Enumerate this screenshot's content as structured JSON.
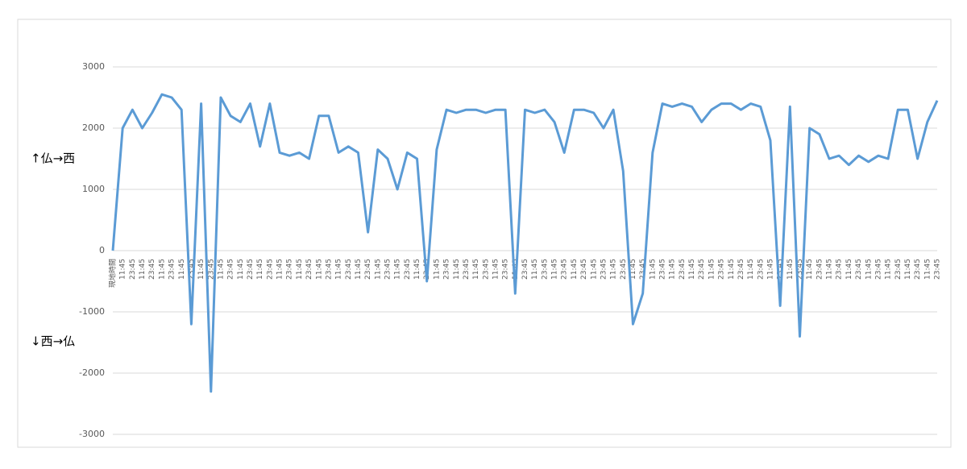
{
  "chart_data": {
    "type": "line",
    "annotations": [
      "↑仏→西",
      "↓西→仏"
    ],
    "categories": [
      "現地時間",
      "11:45",
      "23:45",
      "11:45",
      "23:45",
      "11:45",
      "23:45",
      "11:45",
      "23:45",
      "11:45",
      "23:45",
      "11:45",
      "23:45",
      "11:45",
      "23:45",
      "11:45",
      "23:45",
      "11:45",
      "23:45",
      "11:45",
      "23:45",
      "11:45",
      "23:45",
      "11:45",
      "23:45",
      "11:45",
      "23:45",
      "11:45",
      "23:45",
      "11:45",
      "23:45",
      "11:45",
      "23:45",
      "11:45",
      "23:45",
      "11:45",
      "23:45",
      "11:45",
      "23:45",
      "11:45",
      "23:45",
      "11:45",
      "23:45",
      "11:45",
      "23:45",
      "11:45",
      "23:45",
      "11:45",
      "23:45",
      "11:45",
      "23:45",
      "11:45",
      "23:45",
      "11:45",
      "23:45",
      "11:45",
      "23:45",
      "11:45",
      "23:45",
      "11:45",
      "23:45",
      "11:45",
      "23:45",
      "11:45",
      "23:45",
      "11:45",
      "23:45",
      "11:45",
      "23:45",
      "11:45",
      "23:45",
      "11:45",
      "23:45",
      "11:45",
      "23:45",
      "11:45",
      "23:45",
      "11:45",
      "23:45",
      "11:45",
      "23:45",
      "11:45",
      "23:45",
      "11:45",
      "23:45"
    ],
    "series": [
      {
        "color": "#5b9bd5",
        "values": [
          0,
          2000,
          2300,
          2000,
          2250,
          2550,
          2500,
          2300,
          -1200,
          2400,
          -2300,
          2500,
          2200,
          2100,
          2400,
          1700,
          2400,
          1600,
          1550,
          1600,
          1500,
          2200,
          2200,
          1600,
          1700,
          1600,
          300,
          1650,
          1500,
          1000,
          1600,
          1500,
          -500,
          1650,
          2300,
          2250,
          2300,
          2300,
          2250,
          2300,
          2300,
          -700,
          2300,
          2250,
          2300,
          2100,
          1600,
          2300,
          2300,
          2250,
          2000,
          2300,
          1300,
          -1200,
          -700,
          1600,
          2400,
          2350,
          2400,
          2350,
          2100,
          2300,
          2400,
          2400,
          2300,
          2400,
          2350,
          1800,
          -900,
          2350,
          -1400,
          2000,
          1900,
          1500,
          1550,
          1400,
          1550,
          1450,
          1550,
          1500,
          2300,
          2300,
          1500,
          2100,
          2450
        ]
      }
    ],
    "ylim": [
      -3000,
      3000
    ],
    "yticks": [
      -3000,
      -2000,
      -1000,
      0,
      1000,
      2000,
      3000
    ],
    "grid": true
  }
}
